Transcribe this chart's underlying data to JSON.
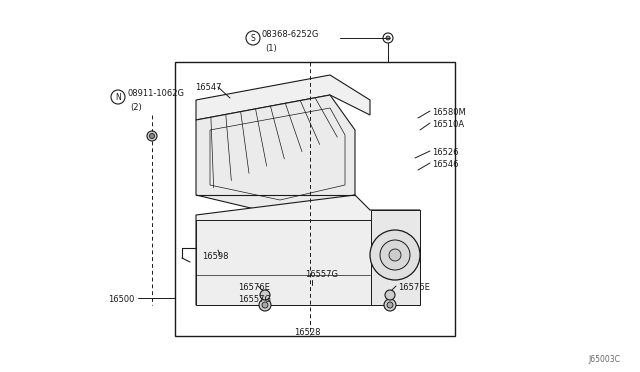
{
  "bg_color": "#ffffff",
  "line_color": "#1a1a1a",
  "gray_fill": "#e8e8e8",
  "light_fill": "#f2f2f2",
  "title_ref": "J65003C",
  "labels": {
    "s_label": "© 08368-6252G",
    "s_sub": "(1)",
    "n_label": "® 08911-1062G",
    "n_sub": "(2)",
    "l16547": "16547",
    "l16580M": "16580M",
    "l16510A": "16510A",
    "l16526": "16526",
    "l16546": "16546",
    "l16598": "16598",
    "l16557G_1": "16557G",
    "l16576E_1": "16576E",
    "l16557G_2": "16557G",
    "l16576E_2": "16576E",
    "l16500": "16500",
    "l16528": "16528"
  }
}
